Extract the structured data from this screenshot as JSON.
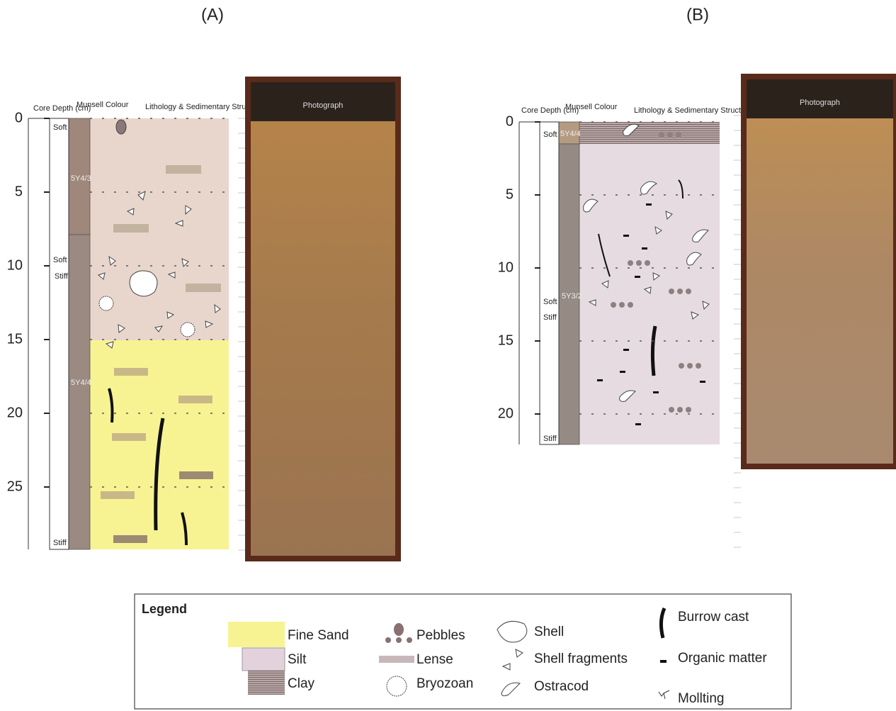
{
  "panels": [
    {
      "label": "(A)",
      "headers": {
        "depth": "Core Depth (cm)",
        "munsell": "Munsell Colour",
        "lithology": "Lithology & Sedimentary Structure",
        "photo": "Photograph"
      },
      "depth_ticks": [
        0,
        5,
        10,
        15,
        20,
        25
      ],
      "consistency": [
        "Soft",
        "Soft",
        "Stiff",
        "Stiff"
      ],
      "munsell": [
        "5Y4/3",
        "5Y4/4"
      ]
    },
    {
      "label": "(B)",
      "headers": {
        "depth": "Core Depth (cm)",
        "munsell": "Munsell Colour",
        "lithology": "Lithology & Sedimentary Structure",
        "photo": "Photograph"
      },
      "depth_ticks": [
        0,
        5,
        10,
        15,
        20
      ],
      "consistency": [
        "Soft",
        "Soft",
        "Stiff",
        "Stiff"
      ],
      "munsell": [
        "5Y4/4",
        "5Y3/2"
      ]
    }
  ],
  "legend": {
    "title": "Legend",
    "items": [
      "Fine Sand",
      "Silt",
      "Clay",
      "Pebbles",
      "Lense",
      "Bryozoan",
      "Shell",
      "Shell fragments",
      "Ostracod",
      "Burrow cast",
      "Organic matter",
      "Mollting"
    ]
  }
}
